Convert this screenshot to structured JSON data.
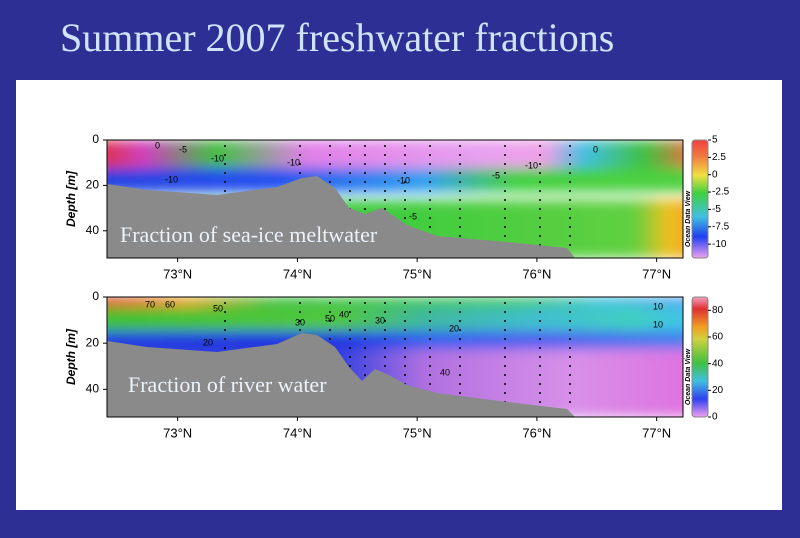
{
  "title": "Summer 2007 freshwater fractions",
  "chart_data": [
    {
      "type": "contour",
      "annotation": "Fraction of sea-ice meltwater",
      "ylabel": "Depth [m]",
      "colorbar_label": "Ocean Data View",
      "xlim": [
        72.41,
        77.22
      ],
      "xticks": [
        {
          "value": 73,
          "label": "73°N"
        },
        {
          "value": 74,
          "label": "74°N"
        },
        {
          "value": 75,
          "label": "75°N"
        },
        {
          "value": 76,
          "label": "76°N"
        },
        {
          "value": 77,
          "label": "77°N"
        }
      ],
      "ylim": [
        52,
        0
      ],
      "yticks": [
        0,
        20,
        40
      ],
      "clim": [
        -12,
        5
      ],
      "cticks": [
        5,
        2.5,
        0,
        -2.5,
        -5,
        -7.5,
        -10
      ],
      "contour_labels": [
        0,
        -5,
        -10,
        -10,
        -10,
        -10,
        -5,
        -10,
        0,
        -5
      ]
    },
    {
      "type": "contour",
      "annotation": "Fraction of river water",
      "ylabel": "Depth [m]",
      "colorbar_label": "Ocean Data View",
      "xlim": [
        72.41,
        77.22
      ],
      "xticks": [
        {
          "value": 73,
          "label": "73°N"
        },
        {
          "value": 74,
          "label": "74°N"
        },
        {
          "value": 75,
          "label": "75°N"
        },
        {
          "value": 76,
          "label": "76°N"
        },
        {
          "value": 77,
          "label": "77°N"
        }
      ],
      "ylim": [
        52,
        0
      ],
      "yticks": [
        0,
        20,
        40
      ],
      "clim": [
        0,
        90
      ],
      "cticks": [
        80,
        60,
        40,
        20,
        0
      ],
      "contour_labels": [
        70,
        60,
        50,
        50,
        30,
        40,
        30,
        20,
        20,
        40,
        10,
        10
      ]
    }
  ]
}
